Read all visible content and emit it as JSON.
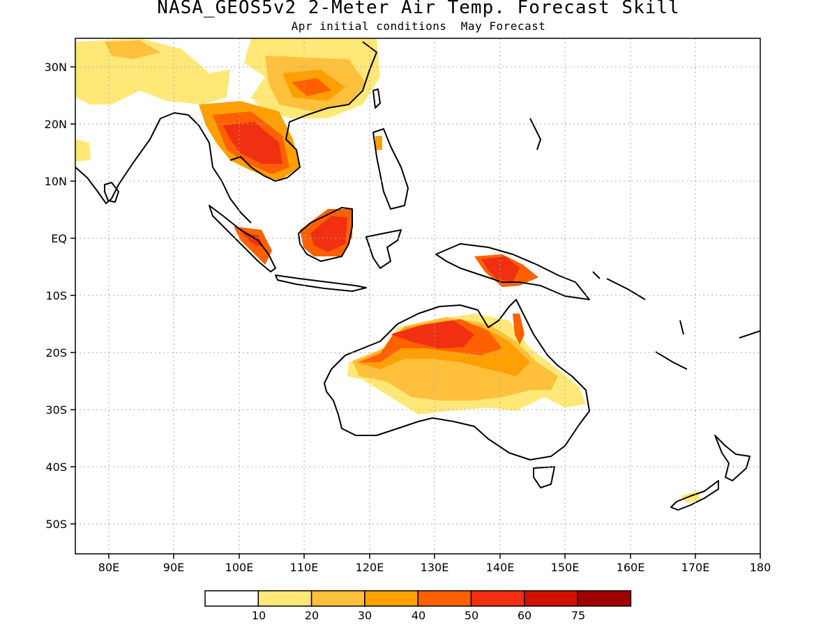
{
  "header": {
    "title": "NASA_GEOS5v2 2-Meter Air Temp. Forecast Skill",
    "subtitle": "Apr initial conditions  May Forecast"
  },
  "axes": {
    "lon_ticks": [
      "80E",
      "90E",
      "100E",
      "110E",
      "120E",
      "130E",
      "140E",
      "150E",
      "160E",
      "170E",
      "180"
    ],
    "lat_ticks": [
      "30N",
      "20N",
      "10N",
      "EQ",
      "10S",
      "20S",
      "30S",
      "40S",
      "50S"
    ]
  },
  "colorbar": {
    "colors": [
      "#ffffff",
      "#ffe878",
      "#ffc03c",
      "#ffa000",
      "#ff6000",
      "#f03010",
      "#d01000",
      "#a00000"
    ],
    "labels": [
      "10",
      "20",
      "30",
      "40",
      "50",
      "60",
      "75"
    ]
  }
}
